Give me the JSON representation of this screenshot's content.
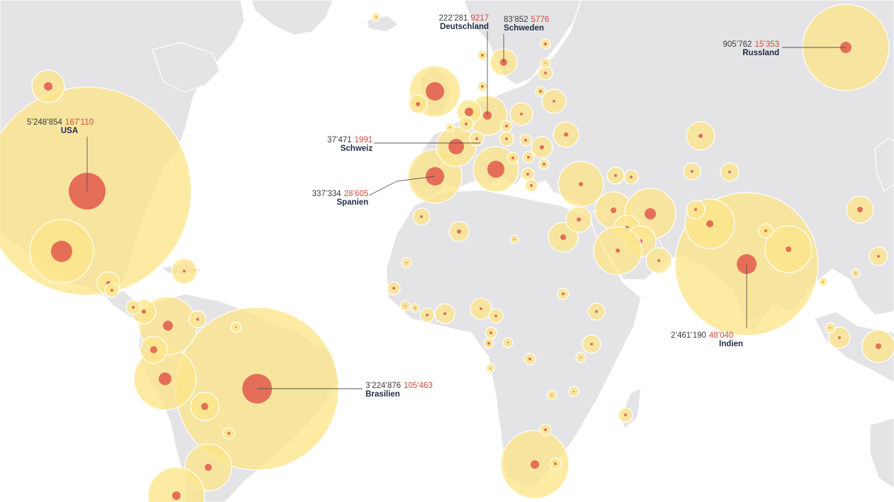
{
  "colors": {
    "land": "#e4e4e6",
    "ocean": "#ffffff",
    "cases_bubble": "#fde58a",
    "deaths_bubble": "#e36451",
    "cases_text": "#3b3b3b",
    "deaths_text": "#d24b3a",
    "country_text": "#1f2a44"
  },
  "labels": [
    {
      "id": "usa",
      "country": "USA",
      "cases": "5’248’854",
      "deaths": "167’110"
    },
    {
      "id": "brasilien",
      "country": "Brasilien",
      "cases": "3’224’876",
      "deaths": "105’463"
    },
    {
      "id": "indien",
      "country": "Indien",
      "cases": "2’461’190",
      "deaths": "48’040"
    },
    {
      "id": "russland",
      "country": "Russland",
      "cases": "905’762",
      "deaths": "15’353"
    },
    {
      "id": "spanien",
      "country": "Spanien",
      "cases": "337’334",
      "deaths": "28’605"
    },
    {
      "id": "deutschland",
      "country": "Deutschland",
      "cases": "222’281",
      "deaths": "9217"
    },
    {
      "id": "schweden",
      "country": "Schweden",
      "cases": "83’852",
      "deaths": "5776"
    },
    {
      "id": "schweiz",
      "country": "Schweiz",
      "cases": "37’471",
      "deaths": "1991"
    }
  ]
}
